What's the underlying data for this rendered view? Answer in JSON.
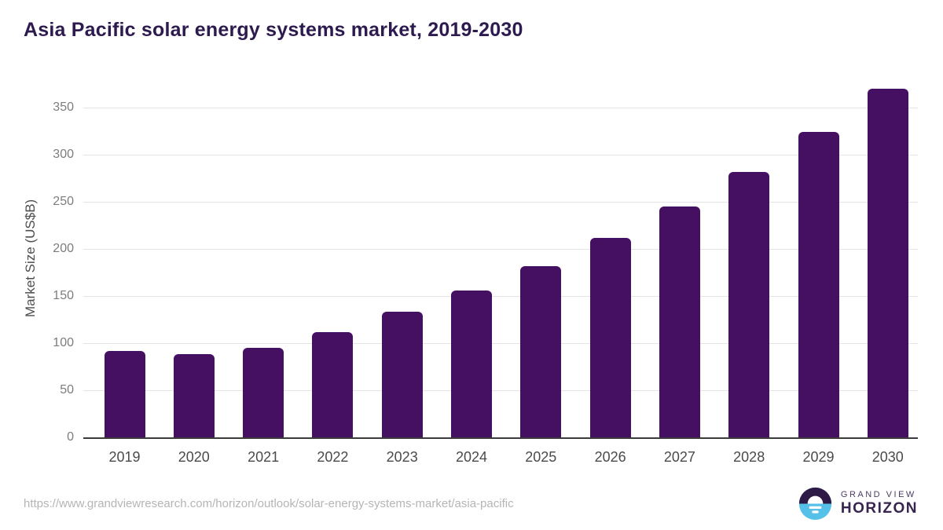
{
  "title": "Asia Pacific solar energy systems market, 2019-2030",
  "chart_data": {
    "type": "bar",
    "title": "Asia Pacific solar energy systems market, 2019-2030",
    "categories": [
      "2019",
      "2020",
      "2021",
      "2022",
      "2023",
      "2024",
      "2025",
      "2026",
      "2027",
      "2028",
      "2029",
      "2030"
    ],
    "values": [
      92,
      88,
      95,
      112,
      133,
      156,
      182,
      212,
      245,
      282,
      324,
      370
    ],
    "xlabel": "",
    "ylabel": "Market Size (US$B)",
    "ylim": [
      0,
      375
    ],
    "yticks": [
      0,
      50,
      100,
      150,
      200,
      250,
      300,
      350
    ],
    "grid": true,
    "legend": "none",
    "bar_color": "#451062"
  },
  "colors": {
    "title": "#2d1a4e",
    "bar": "#451062",
    "logo_purple": "#2e1a47",
    "logo_blue": "#56c1e8"
  },
  "footer": {
    "source_url": "https://www.grandviewresearch.com/horizon/outlook/solar-energy-systems-market/asia-pacific",
    "logo_line1": "GRAND VIEW",
    "logo_line2": "HORIZON"
  }
}
